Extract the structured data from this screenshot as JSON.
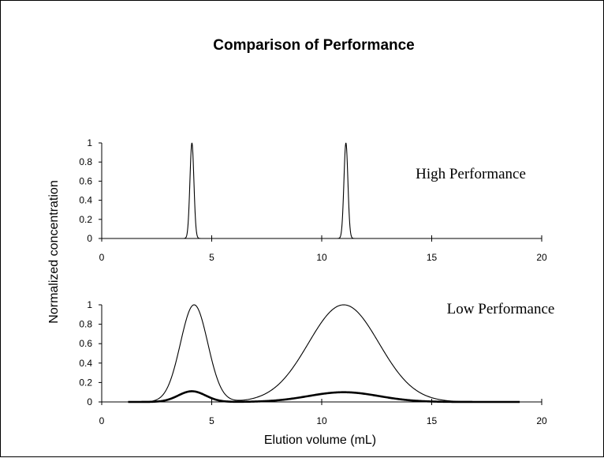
{
  "chart_data": {
    "title": "Comparison of Performance",
    "ylabel": "Normalized concentration",
    "xlabel": "Elution volume (mL)",
    "panels": [
      {
        "type": "line",
        "label": "High Performance",
        "xlim": [
          0,
          20
        ],
        "ylim": [
          0,
          1
        ],
        "xticks": [
          "0",
          "5",
          "10",
          "15",
          "20"
        ],
        "yticks": [
          "0",
          "0.2",
          "0.4",
          "0.6",
          "0.8",
          "1"
        ],
        "series": [
          {
            "style": "thin",
            "peaks": [
              {
                "center": 4.1,
                "height": 1,
                "sigma": 0.09
              },
              {
                "center": 11.1,
                "height": 1,
                "sigma": 0.09
              }
            ],
            "xrange": [
              3.4,
              11.7
            ]
          }
        ]
      },
      {
        "type": "line",
        "label": "Low Performance",
        "xlim": [
          0,
          20
        ],
        "ylim": [
          0,
          1
        ],
        "xticks": [
          "0",
          "5",
          "10",
          "15",
          "20"
        ],
        "yticks": [
          "0",
          "0.2",
          "0.4",
          "0.6",
          "0.8",
          "1"
        ],
        "series": [
          {
            "style": "thin",
            "peaks": [
              {
                "center": 4.2,
                "height": 1,
                "sigma": 0.62
              },
              {
                "center": 11.0,
                "height": 1,
                "sigma": 1.6
              }
            ],
            "xrange": [
              2.0,
              17.0
            ]
          },
          {
            "style": "thick",
            "peaks": [
              {
                "center": 4.1,
                "height": 0.11,
                "sigma": 0.62
              },
              {
                "center": 11.0,
                "height": 0.1,
                "sigma": 1.6
              }
            ],
            "xrange": [
              1.2,
              19.0
            ]
          }
        ]
      }
    ]
  }
}
